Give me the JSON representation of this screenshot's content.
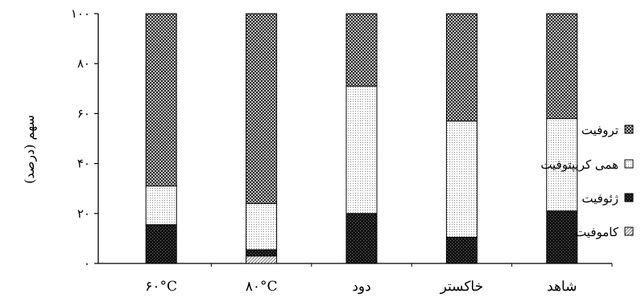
{
  "chart_data": {
    "type": "bar",
    "stacked": true,
    "percent": true,
    "categories": [
      "۶۰°C",
      "۸۰°C",
      "دود",
      "خاکستر",
      "شاهد"
    ],
    "series": [
      {
        "name": "کاموفیت",
        "pattern": "diagonal-hatch",
        "values": [
          0,
          3,
          0,
          0,
          0
        ]
      },
      {
        "name": "ژئوفیت",
        "pattern": "dense-dark-check",
        "values": [
          15.5,
          2.5,
          20,
          10.5,
          21
        ]
      },
      {
        "name": "همی کریپتوفیت",
        "pattern": "light-dots",
        "values": [
          15.5,
          18.5,
          51,
          46.5,
          37
        ]
      },
      {
        "name": "تروفیت",
        "pattern": "medium-check",
        "values": [
          69,
          76,
          29,
          43,
          42
        ]
      }
    ],
    "ylabel": "سهم (درصد)",
    "ylim": [
      0,
      100
    ],
    "yticks": [
      0,
      20,
      40,
      60,
      80,
      100
    ],
    "ytick_labels": [
      "۰",
      "۲۰",
      "۴۰",
      "۶۰",
      "۸۰",
      "۱۰۰"
    ],
    "legend_order": [
      "تروفیت",
      "همی کریپتوفیت",
      "ژئوفیت",
      "کاموفیت"
    ],
    "legend_position": "right",
    "grid": false
  }
}
